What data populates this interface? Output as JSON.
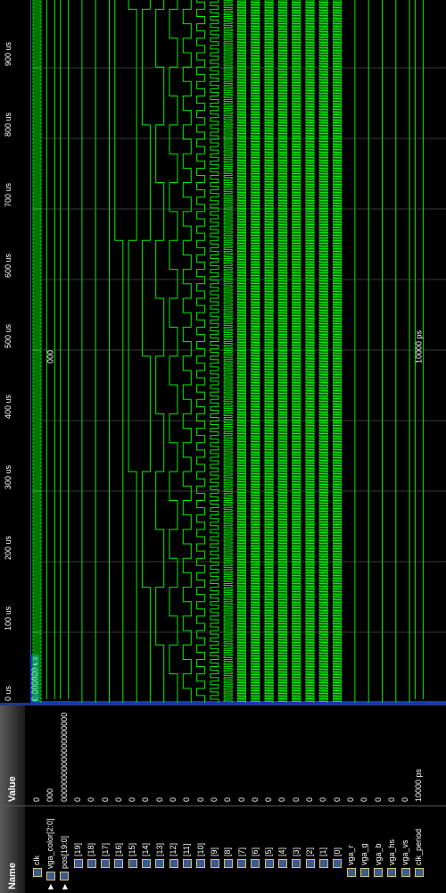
{
  "headers": {
    "name": "Name",
    "value": "Value"
  },
  "signals": [
    {
      "name": "clk",
      "value": "0",
      "type": "bit"
    },
    {
      "name": "vga_color[2:0]",
      "value": "000",
      "type": "bus"
    },
    {
      "name": "pos[19:0]",
      "value": "00000000000000000000",
      "type": "bus"
    },
    {
      "name": "[19]",
      "value": "0",
      "type": "bit"
    },
    {
      "name": "[18]",
      "value": "0",
      "type": "bit"
    },
    {
      "name": "[17]",
      "value": "0",
      "type": "bit"
    },
    {
      "name": "[16]",
      "value": "0",
      "type": "bit"
    },
    {
      "name": "[15]",
      "value": "0",
      "type": "bit"
    },
    {
      "name": "[14]",
      "value": "0",
      "type": "bit"
    },
    {
      "name": "[13]",
      "value": "0",
      "type": "bit"
    },
    {
      "name": "[12]",
      "value": "0",
      "type": "bit"
    },
    {
      "name": "[11]",
      "value": "0",
      "type": "bit"
    },
    {
      "name": "[10]",
      "value": "0",
      "type": "bit"
    },
    {
      "name": "[9]",
      "value": "0",
      "type": "bit"
    },
    {
      "name": "[8]",
      "value": "0",
      "type": "bit"
    },
    {
      "name": "[7]",
      "value": "0",
      "type": "bit"
    },
    {
      "name": "[6]",
      "value": "0",
      "type": "bit"
    },
    {
      "name": "[5]",
      "value": "0",
      "type": "bit"
    },
    {
      "name": "[4]",
      "value": "0",
      "type": "bit"
    },
    {
      "name": "[3]",
      "value": "0",
      "type": "bit"
    },
    {
      "name": "[2]",
      "value": "0",
      "type": "bit"
    },
    {
      "name": "[1]",
      "value": "0",
      "type": "bit"
    },
    {
      "name": "[0]",
      "value": "0",
      "type": "bit"
    },
    {
      "name": "vga_r",
      "value": "0",
      "type": "bit"
    },
    {
      "name": "vga_g",
      "value": "0",
      "type": "bit"
    },
    {
      "name": "vga_b",
      "value": "0",
      "type": "bit"
    },
    {
      "name": "vga_hs",
      "value": "0",
      "type": "bit"
    },
    {
      "name": "vga_vs",
      "value": "0",
      "type": "bit"
    },
    {
      "name": "clk_period",
      "value": "10000 ps",
      "type": "param"
    }
  ],
  "ruler": {
    "cursor_time": "0.000000 us",
    "ticks": [
      "0 us",
      "100 us",
      "200 us",
      "300 us",
      "400 us",
      "500 us",
      "600 us",
      "700 us",
      "800 us",
      "900 us"
    ]
  },
  "bus_labels": {
    "vga_color": "000",
    "clk_period": "10000 ps"
  },
  "colors": {
    "wave": "#00ee00",
    "grid": "#3a3a3a",
    "cursor": "#1537c8"
  }
}
